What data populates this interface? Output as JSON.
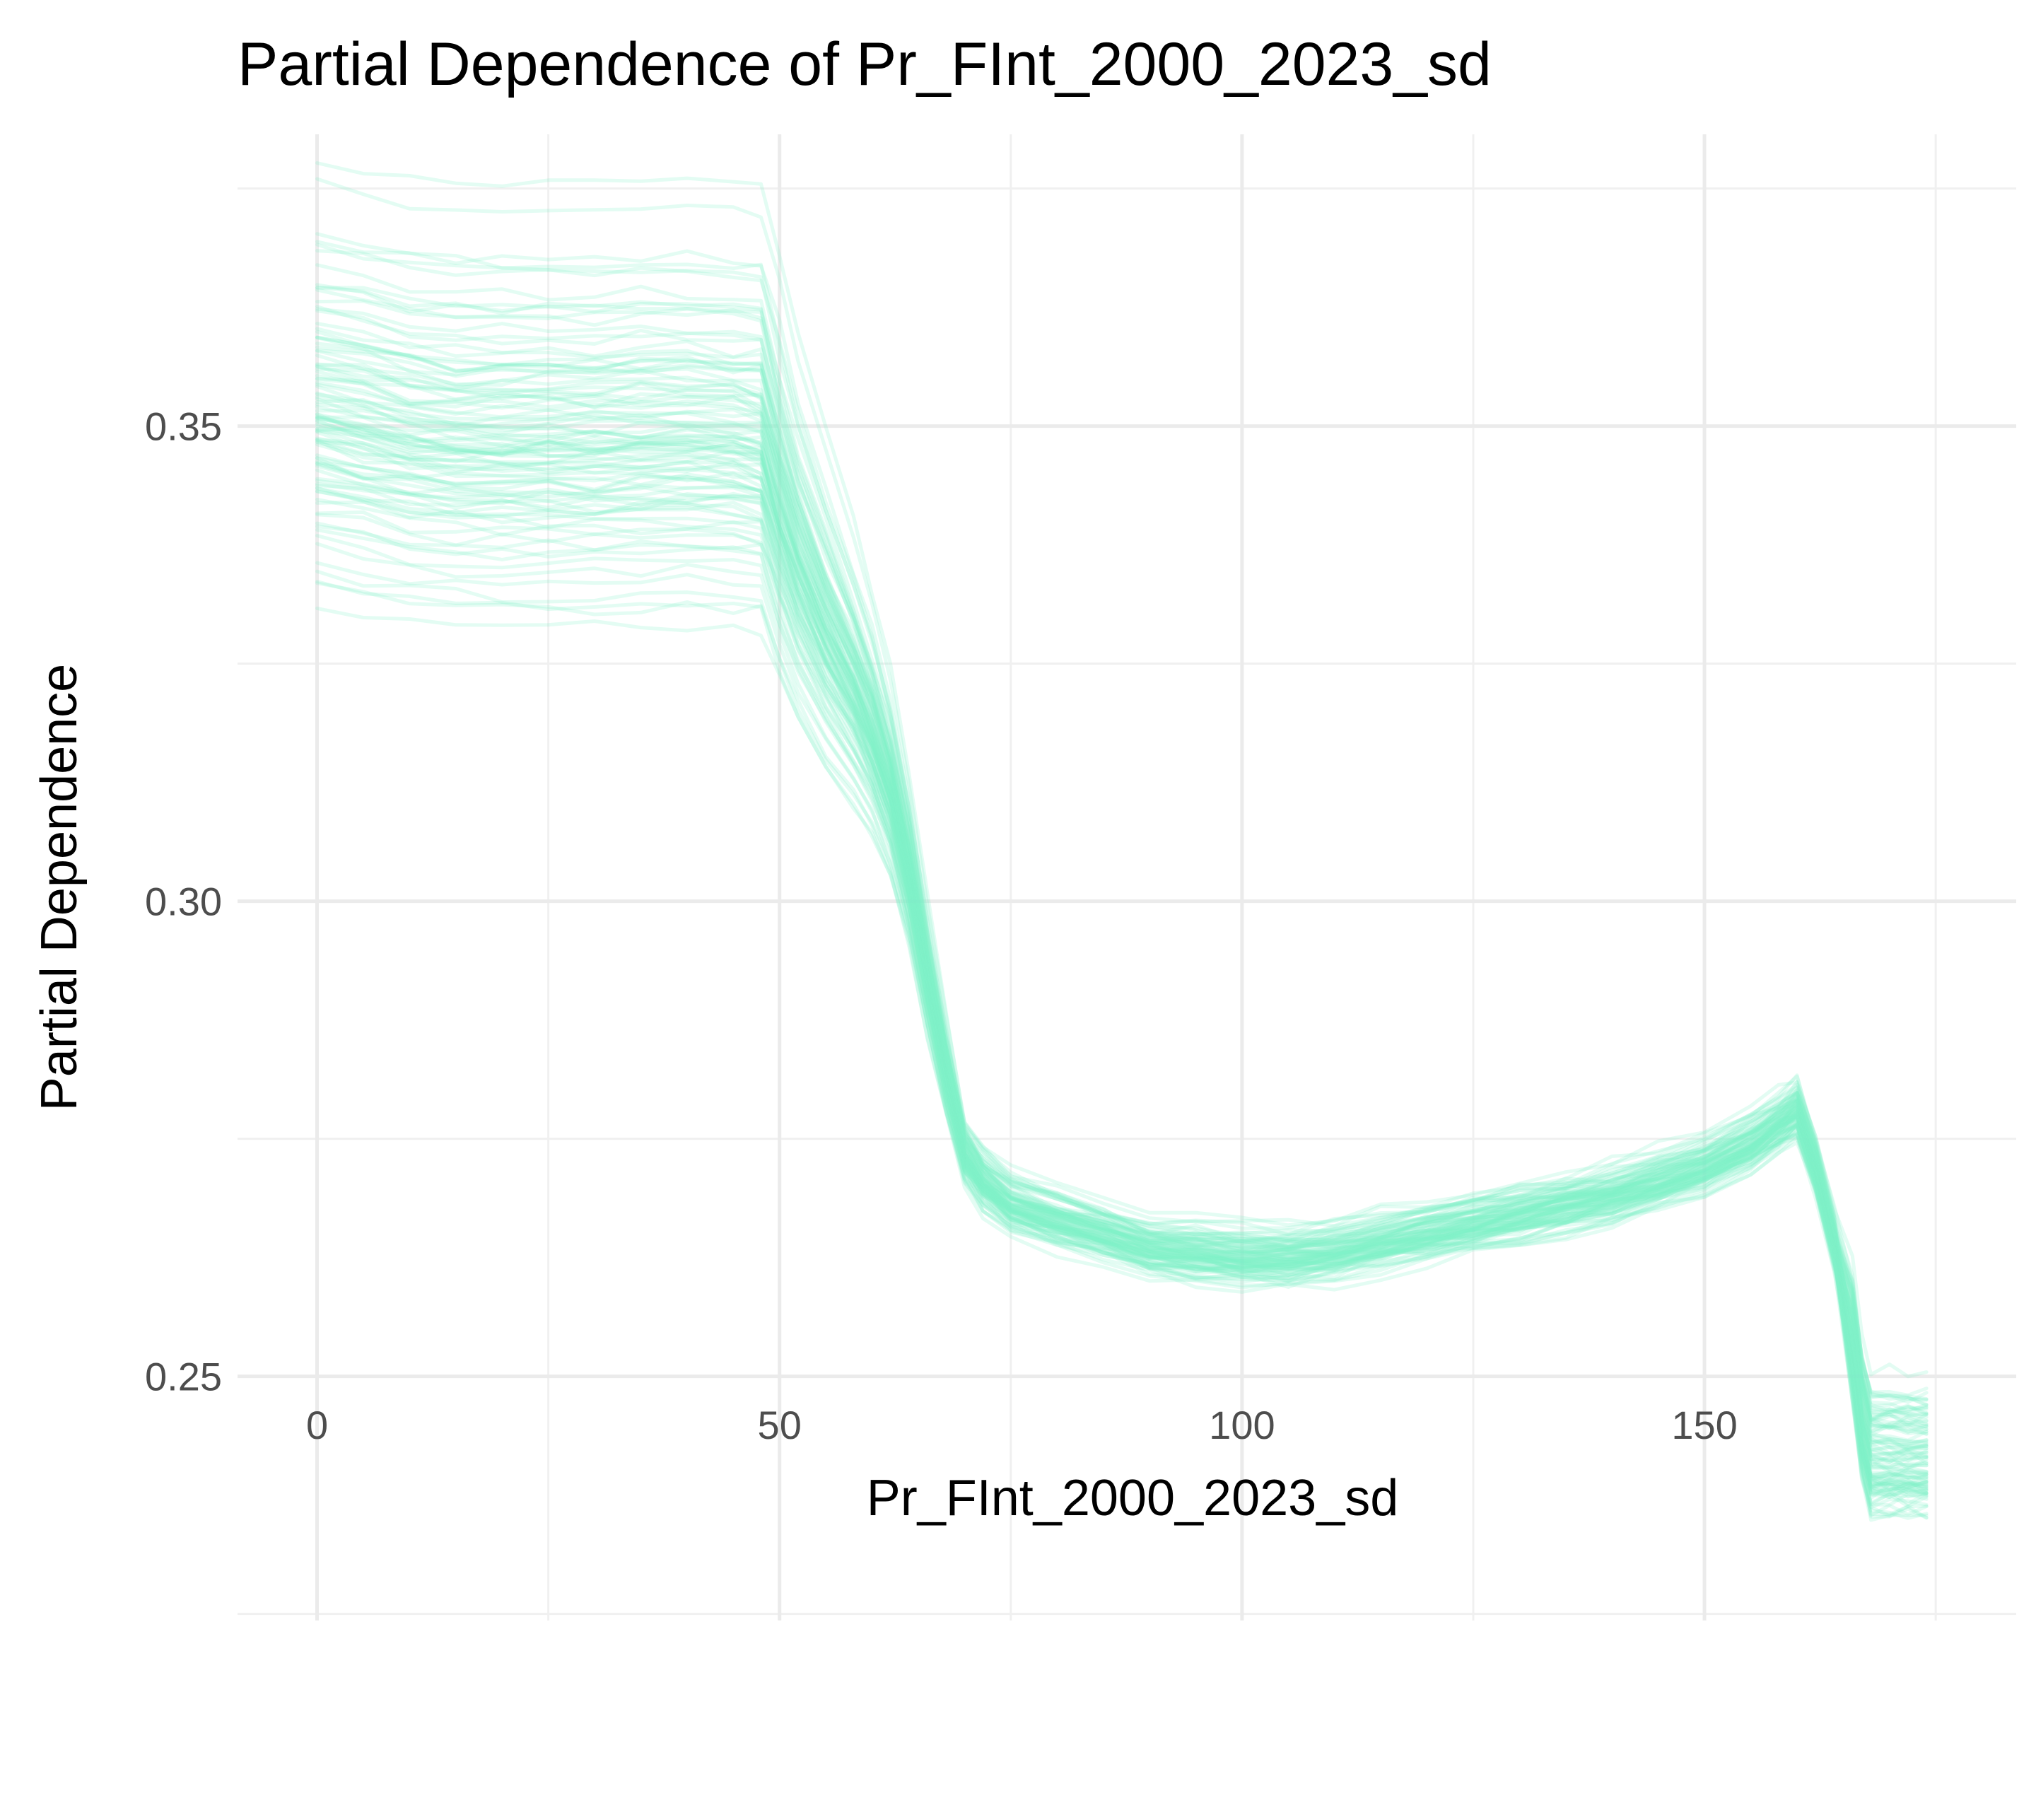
{
  "chart_data": {
    "type": "line",
    "title": "Partial Dependence of Pr_FInt_2000_2023_sd",
    "xlabel": "Pr_FInt_2000_2023_sd",
    "ylabel": "Partial Dependence",
    "xlim": [
      -8.6,
      183.7
    ],
    "ylim": [
      0.2243,
      0.3807
    ],
    "x_ticks": [
      0,
      50,
      100,
      150
    ],
    "x_tick_labels": [
      "0",
      "50",
      "100",
      "150"
    ],
    "y_ticks": [
      0.25,
      0.3,
      0.35
    ],
    "y_tick_labels": [
      "0.25",
      "0.30",
      "0.35"
    ],
    "x_minor_ticks": [
      25,
      75,
      125,
      175
    ],
    "y_minor_ticks": [
      0.225,
      0.275,
      0.325,
      0.375
    ],
    "grid": true,
    "legend": "none",
    "line_color": "#7ff0c8",
    "line_opacity": 0.22,
    "n_curves": 100,
    "center_curve": {
      "x": [
        0,
        5,
        10,
        15,
        20,
        25,
        30,
        35,
        40,
        45,
        48,
        50,
        52,
        55,
        58,
        60,
        62,
        64,
        66,
        68,
        70,
        72,
        75,
        80,
        85,
        90,
        95,
        100,
        105,
        110,
        115,
        120,
        125,
        130,
        135,
        140,
        145,
        150,
        155,
        158,
        160,
        162,
        164,
        166,
        167,
        168,
        170,
        172,
        174
      ],
      "y": [
        0.352,
        0.351,
        0.35,
        0.3495,
        0.3495,
        0.3495,
        0.3495,
        0.3497,
        0.3498,
        0.3495,
        0.349,
        0.342,
        0.336,
        0.329,
        0.323,
        0.318,
        0.312,
        0.303,
        0.292,
        0.282,
        0.2735,
        0.2705,
        0.268,
        0.2665,
        0.265,
        0.2635,
        0.263,
        0.2625,
        0.2625,
        0.263,
        0.264,
        0.265,
        0.266,
        0.267,
        0.268,
        0.269,
        0.2705,
        0.272,
        0.2745,
        0.2765,
        0.278,
        0.272,
        0.264,
        0.254,
        0.246,
        0.242,
        0.242,
        0.242,
        0.242
      ]
    },
    "curve_offsets": [
      0.028,
      0.024,
      0.02,
      0.017,
      0.016,
      0.015,
      0.014,
      0.013,
      0.012,
      0.011,
      0.011,
      0.01,
      0.01,
      0.009,
      0.009,
      0.008,
      0.008,
      0.007,
      0.007,
      0.007,
      0.006,
      0.006,
      0.006,
      0.005,
      0.005,
      0.005,
      0.004,
      0.004,
      0.004,
      0.004,
      0.003,
      0.003,
      0.003,
      0.003,
      0.002,
      0.002,
      0.002,
      0.002,
      0.001,
      0.001,
      0.001,
      0.001,
      0.0005,
      0.0005,
      0.0,
      0.0,
      0.0,
      0.0,
      -0.0005,
      -0.0005,
      -0.001,
      -0.001,
      -0.001,
      -0.0015,
      -0.0015,
      -0.002,
      -0.002,
      -0.002,
      -0.0025,
      -0.0025,
      -0.003,
      -0.003,
      -0.003,
      -0.0035,
      -0.0035,
      -0.004,
      -0.004,
      -0.004,
      -0.0045,
      -0.0045,
      -0.005,
      -0.005,
      -0.0055,
      -0.0055,
      -0.006,
      -0.006,
      -0.0065,
      -0.0065,
      -0.007,
      -0.007,
      -0.0075,
      -0.008,
      -0.008,
      -0.0085,
      -0.009,
      -0.009,
      -0.01,
      -0.01,
      -0.011,
      -0.011,
      -0.012,
      -0.012,
      -0.013,
      -0.014,
      -0.015,
      -0.016,
      -0.017,
      -0.018,
      -0.019,
      -0.02
    ]
  }
}
